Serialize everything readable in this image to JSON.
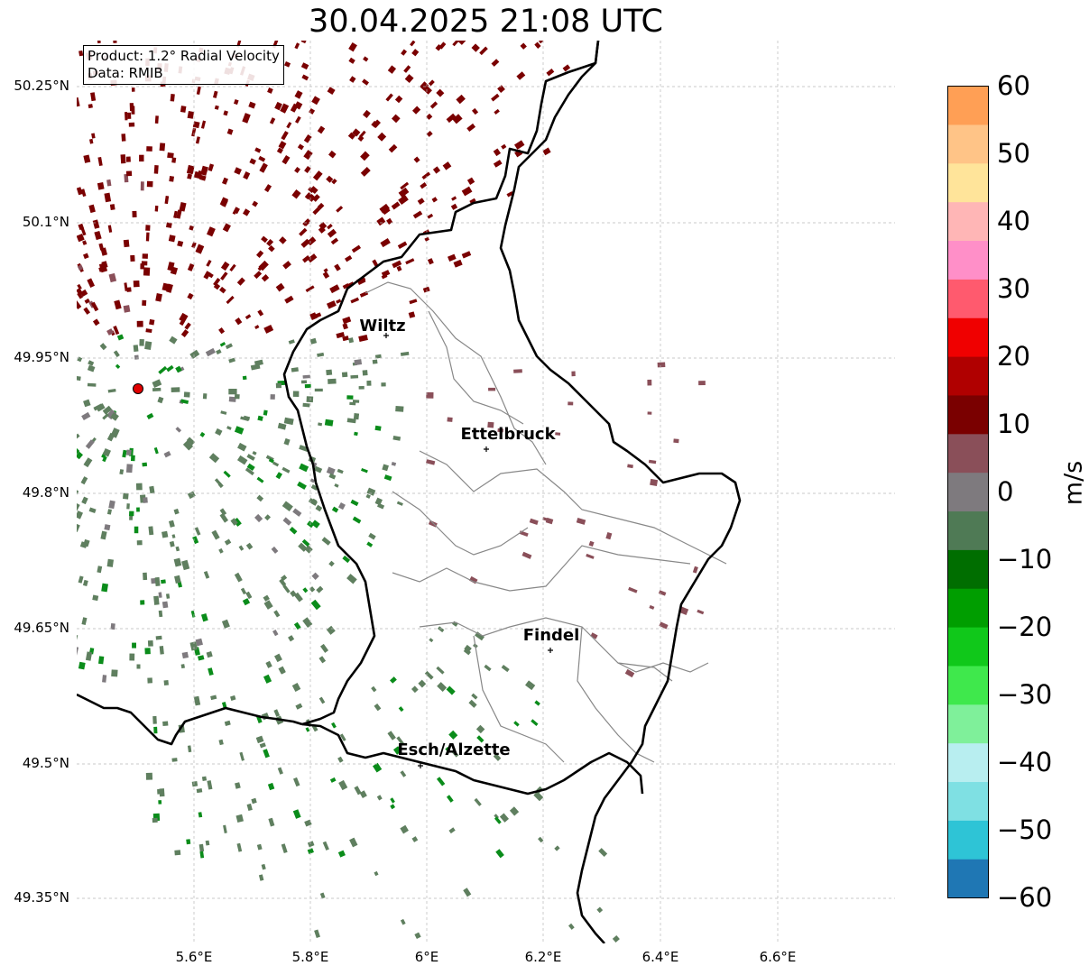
{
  "title": "30.04.2025 21:08 UTC",
  "info": {
    "product": "Product: 1.2° Radial Velocity",
    "data": "Data: RMIB"
  },
  "lat_ticks": [
    "50.25°N",
    "50.1°N",
    "49.95°N",
    "49.8°N",
    "49.65°N",
    "49.5°N",
    "49.35°N"
  ],
  "lon_ticks": [
    "5.6°E",
    "5.8°E",
    "6°E",
    "6.2°E",
    "6.4°E",
    "6.6°E"
  ],
  "cities": [
    {
      "name": "Wiltz"
    },
    {
      "name": "Ettelbruck"
    },
    {
      "name": "Findel"
    },
    {
      "name": "Esch/Alzette"
    }
  ],
  "colorbar": {
    "unit": "m/s",
    "ticks": [
      "60",
      "50",
      "40",
      "30",
      "20",
      "10",
      "0",
      "−10",
      "−20",
      "−30",
      "−40",
      "−50",
      "−60"
    ],
    "range": [
      -60,
      60
    ],
    "colors": [
      "#1f77b4",
      "#2ec4d6",
      "#7fe0e3",
      "#b8eef0",
      "#7ff09a",
      "#3fe84c",
      "#10c81a",
      "#009e00",
      "#006e00",
      "#4f7a55",
      "#7e7a7e",
      "#8a4f59",
      "#7a0000",
      "#b00000",
      "#f00000",
      "#ff5a6e",
      "#ff8fc8",
      "#ffb6b6",
      "#ffe49a",
      "#ffc487",
      "#ff9f55"
    ]
  },
  "colors": {
    "inbound_green": "#0a8c1a",
    "grey_green": "#5f7f5f",
    "outbound_red": "#7a0000",
    "radar_marker": "#e00000"
  }
}
